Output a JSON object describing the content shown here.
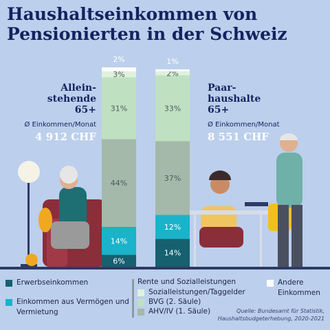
{
  "chart_data": {
    "type": "bar",
    "stacked": true,
    "title": "Haushaltseinkommen von Pensionierten in der Schweiz",
    "categories": [
      "Allein-\nstehende\n65+",
      "Paar-\nhaushalte\n65+"
    ],
    "income_label": [
      "Ø Einkommen/Monat",
      "Ø Einkommen/Monat"
    ],
    "income": [
      "4 912 CHF",
      "8 551 CHF"
    ],
    "ylim": [
      0,
      100
    ],
    "legend_group": "Rente und Sozialleistungen",
    "series": [
      {
        "name": "Erwerbseinkommen",
        "color": "#17606f",
        "values": [
          6,
          14
        ],
        "value_labels": [
          "6%",
          "14%"
        ]
      },
      {
        "name": "Einkommen aus Vermögen und Vermietung",
        "color": "#1bb3c9",
        "values": [
          14,
          12
        ],
        "value_labels": [
          "14%",
          "12%"
        ]
      },
      {
        "name": "AHV/IV (1. Säule)",
        "color": "#a4b9a9",
        "values": [
          44,
          37
        ],
        "value_labels": [
          "44%",
          "37%"
        ]
      },
      {
        "name": "BVG (2. Säule)",
        "color": "#bfe1c1",
        "values": [
          31,
          33
        ],
        "value_labels": [
          "31%",
          "33%"
        ]
      },
      {
        "name": "Sozialleistungen/Taggelder",
        "color": "#e0f1dc",
        "values": [
          3,
          2
        ],
        "value_labels": [
          "3%",
          "2%"
        ]
      },
      {
        "name": "Andere Einkommen",
        "color": "#ffffff",
        "values": [
          2,
          1
        ],
        "value_labels": [
          "2%",
          "1%"
        ]
      }
    ],
    "source": "Quelle: Bundesamt für Statistik,\nHaushaltsbudgeterhebung, 2020-2021"
  }
}
